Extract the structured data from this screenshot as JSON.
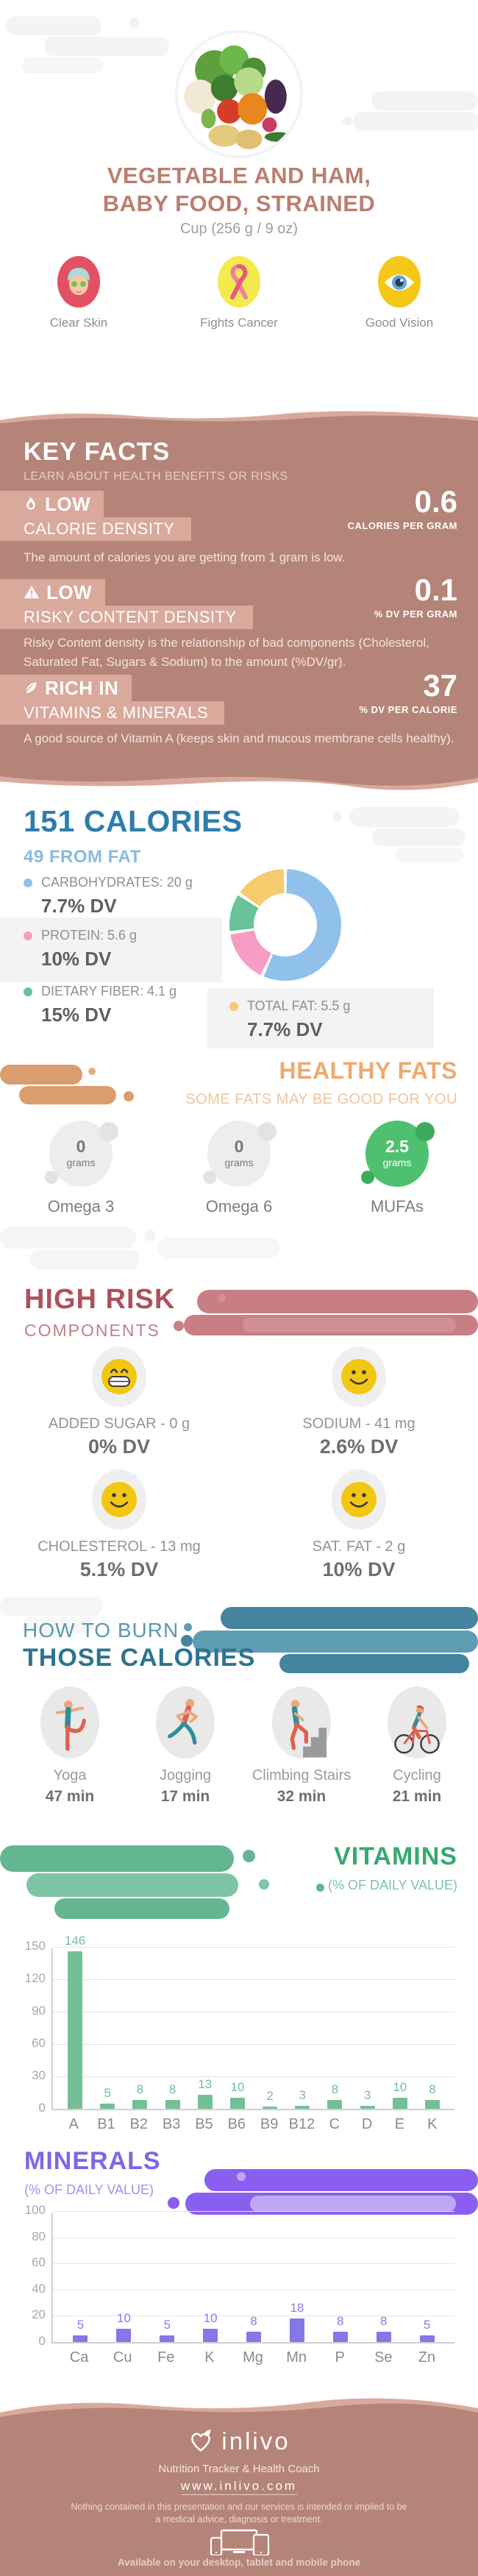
{
  "header": {
    "title_line1": "VEGETABLE AND HAM,",
    "title_line2": "BABY FOOD, STRAINED",
    "serving": "Cup (256 g / 9 oz)",
    "benefits": [
      {
        "label": "Clear Skin"
      },
      {
        "label": "Fights Cancer"
      },
      {
        "label": "Good Vision"
      }
    ]
  },
  "key_facts": {
    "title": "KEY FACTS",
    "subtitle": "LEARN ABOUT HEALTH BENEFITS OR RISKS",
    "facts": [
      {
        "level": "LOW",
        "name": "CALORIE DENSITY",
        "value": "0.6",
        "unit": "CALORIES PER GRAM",
        "description": "The amount of calories you are getting from 1 gram is low."
      },
      {
        "level": "LOW",
        "name": "RISKY CONTENT DENSITY",
        "value": "0.1",
        "unit": "% DV PER GRAM",
        "description": "Risky Content density is the relationship of bad components (Cholesterol, Saturated Fat, Sugars & Sodium) to the amount (%DV/gr)."
      },
      {
        "level": "RICH IN",
        "name": "VITAMINS & MINERALS",
        "value": "37",
        "unit": "% DV PER CALORIE",
        "description": "A good source of Vitamin A (keeps skin and mucous membrane cells healthy)."
      }
    ]
  },
  "calories": {
    "title": "151 CALORIES",
    "subtitle": "49 FROM FAT",
    "macros": [
      {
        "label": "CARBOHYDRATES: 20 g",
        "dv": "7.7% DV",
        "color": "#8fc1ea"
      },
      {
        "label": "PROTEIN: 5.6 g",
        "dv": "10% DV",
        "color": "#f79cc5"
      },
      {
        "label": "DIETARY FIBER: 4.1 g",
        "dv": "15% DV",
        "color": "#68c398"
      },
      {
        "label": "TOTAL FAT: 5.5 g",
        "dv": "7.7% DV",
        "color": "#f6cb6e"
      }
    ]
  },
  "healthy_fats": {
    "title": "HEALTHY FATS",
    "subtitle": "SOME FATS MAY BE GOOD FOR YOU",
    "items": [
      {
        "value": "0",
        "unit": "grams",
        "label": "Omega 3",
        "good": false
      },
      {
        "value": "0",
        "unit": "grams",
        "label": "Omega 6",
        "good": false
      },
      {
        "value": "2.5",
        "unit": "grams",
        "label": "MUFAs",
        "good": true
      }
    ]
  },
  "high_risk": {
    "title": "HIGH RISK",
    "subtitle": "COMPONENTS",
    "items": [
      {
        "label": "ADDED SUGAR - 0 g",
        "dv": "0% DV",
        "mood": "grin"
      },
      {
        "label": "SODIUM - 41 mg",
        "dv": "2.6% DV",
        "mood": "smile"
      },
      {
        "label": "CHOLESTEROL - 13 mg",
        "dv": "5.1% DV",
        "mood": "smile"
      },
      {
        "label": "SAT. FAT - 2 g",
        "dv": "10% DV",
        "mood": "smile"
      }
    ]
  },
  "burn": {
    "title_line1": "HOW TO BURN",
    "title_line2": "THOSE CALORIES",
    "activities": [
      {
        "label": "Yoga",
        "duration": "47 min"
      },
      {
        "label": "Jogging",
        "duration": "17 min"
      },
      {
        "label": "Climbing Stairs",
        "duration": "32 min"
      },
      {
        "label": "Cycling",
        "duration": "21 min"
      }
    ]
  },
  "vitamins_section": {
    "title": "VITAMINS",
    "subtitle": "(% OF DAILY VALUE)"
  },
  "minerals_section": {
    "title": "MINERALS",
    "subtitle": "(% OF DAILY VALUE)"
  },
  "chart_data": [
    {
      "type": "pie",
      "id": "macros-donut",
      "title": "151 CALORIES (49 FROM FAT)",
      "labels": [
        "Carbohydrates",
        "Protein",
        "Dietary Fiber",
        "Total Fat"
      ],
      "values_g": [
        20,
        5.6,
        4.1,
        5.5
      ],
      "dv_percent": [
        7.7,
        10,
        15,
        7.7
      ],
      "colors": [
        "#8fc1ea",
        "#f79cc5",
        "#68c398",
        "#f6cb6e"
      ],
      "donut": true
    },
    {
      "type": "bar",
      "id": "vitamins",
      "title": "VITAMINS (% OF DAILY VALUE)",
      "categories": [
        "A",
        "B1",
        "B2",
        "B3",
        "B5",
        "B6",
        "B9",
        "B12",
        "C",
        "D",
        "E",
        "K"
      ],
      "values": [
        146,
        5,
        8,
        8,
        13,
        10,
        2,
        3,
        8,
        3,
        10,
        8
      ],
      "ylim": [
        0,
        150
      ],
      "yticks": [
        0,
        30,
        60,
        90,
        120,
        150
      ],
      "color": "#74c096",
      "label_color": "#72bf97",
      "grid": true,
      "legend": "none"
    },
    {
      "type": "bar",
      "id": "minerals",
      "title": "MINERALS (% OF DAILY VALUE)",
      "categories": [
        "Ca",
        "Cu",
        "Fe",
        "K",
        "Mg",
        "Mn",
        "P",
        "Se",
        "Zn"
      ],
      "values": [
        5,
        10,
        5,
        10,
        8,
        18,
        8,
        8,
        5
      ],
      "ylim": [
        0,
        100
      ],
      "yticks": [
        0,
        20,
        40,
        60,
        80,
        100
      ],
      "color": "#8577e6",
      "label_color": "#8b7cf0",
      "grid": true,
      "legend": "none"
    }
  ],
  "footer": {
    "brand": "inlivo",
    "tagline": "Nutrition Tracker & Health Coach",
    "url": "www.inlivo.com",
    "disclaimer": "Nothing contained in this presentation and our services is intended or implied to be a medical advice, diagnosis or treatment.",
    "availability": "Available on your desktop, tablet and mobile phone"
  }
}
